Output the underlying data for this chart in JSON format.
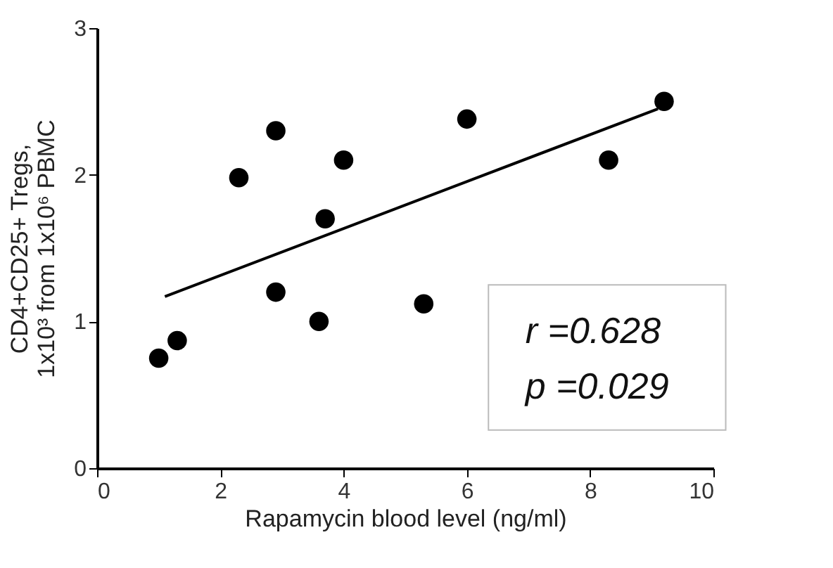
{
  "chart_data": {
    "type": "scatter",
    "xlabel": "Rapamycin blood level (ng/ml)",
    "ylabel": "CD4+CD25+ Tregs,\n1x10³ from 1x10⁶ PBMC",
    "xlim": [
      0,
      10
    ],
    "xticks": [
      0,
      2,
      4,
      6,
      8,
      10
    ],
    "ylim": [
      0,
      3
    ],
    "yticks": [
      0,
      1,
      2,
      3
    ],
    "grid": false,
    "series": [
      {
        "color": "#000000",
        "marker": "circle",
        "x": [
          1.0,
          1.3,
          2.3,
          2.9,
          2.9,
          3.6,
          3.7,
          4.0,
          5.3,
          6.0,
          8.3,
          9.2
        ],
        "values": [
          0.75,
          0.87,
          1.98,
          2.3,
          1.2,
          1.0,
          1.7,
          2.1,
          1.12,
          2.38,
          2.1,
          2.5
        ]
      },
      {
        "type": "line",
        "color": "#000000",
        "line_style": "solid",
        "marker": "none",
        "x": [
          1.1,
          9.1
        ],
        "values": [
          1.17,
          2.45
        ]
      }
    ],
    "annotations": [
      "r =0.628",
      "p =0.029"
    ]
  }
}
